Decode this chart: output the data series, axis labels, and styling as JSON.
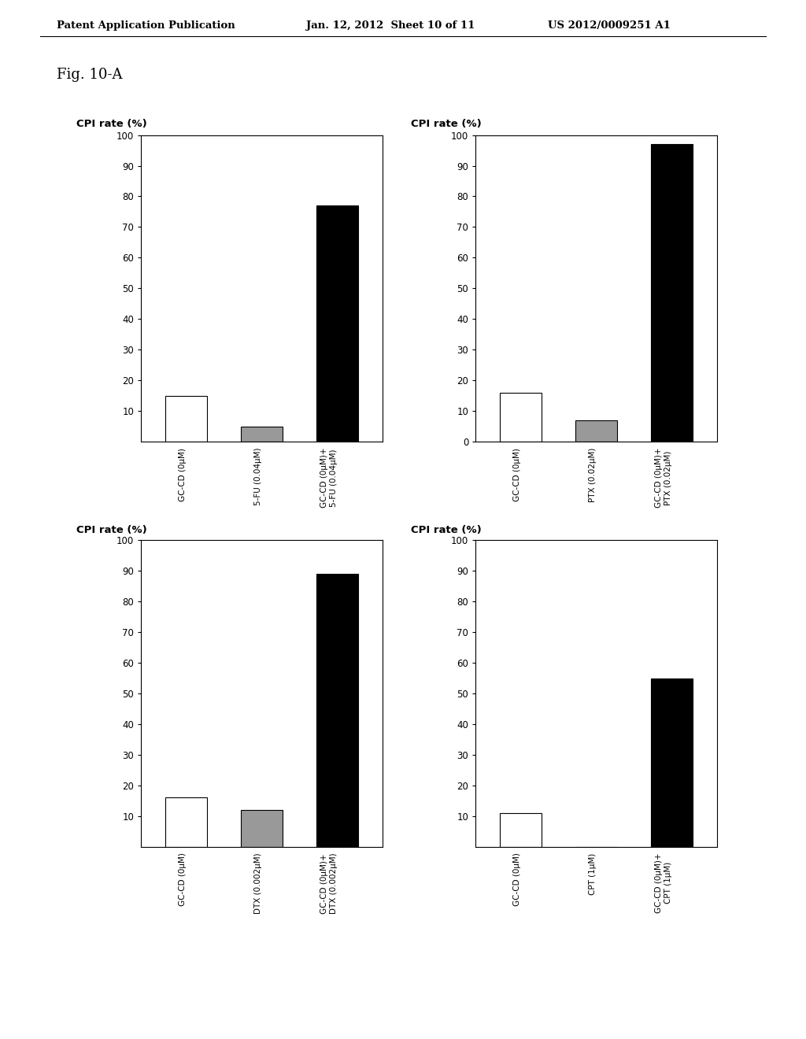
{
  "page_title_left": "Patent Application Publication",
  "page_title_mid": "Jan. 12, 2012  Sheet 10 of 11",
  "page_title_right": "US 2012/0009251 A1",
  "fig_label": "Fig. 10-A",
  "charts": [
    {
      "ylabel": "CPI rate (%)",
      "ylim": [
        0,
        100
      ],
      "yticks": [
        0,
        10,
        20,
        30,
        40,
        50,
        60,
        70,
        80,
        90,
        100
      ],
      "show_zero": false,
      "bars": [
        {
          "label": "GC-CD (0μM)",
          "value": 15,
          "color": "white",
          "edgecolor": "black"
        },
        {
          "label": "5-FU (0.04μM)",
          "value": 5,
          "color": "#999999",
          "edgecolor": "black"
        },
        {
          "label": "GC-CD (0μM)+\n5-FU (0.04μM)",
          "value": 77,
          "color": "black",
          "edgecolor": "black"
        }
      ]
    },
    {
      "ylabel": "CPI rate (%)",
      "ylim": [
        0,
        100
      ],
      "yticks": [
        0,
        10,
        20,
        30,
        40,
        50,
        60,
        70,
        80,
        90,
        100
      ],
      "show_zero": true,
      "bars": [
        {
          "label": "GC-CD (0μM)",
          "value": 16,
          "color": "white",
          "edgecolor": "black"
        },
        {
          "label": "PTX (0.02μM)",
          "value": 7,
          "color": "#999999",
          "edgecolor": "black"
        },
        {
          "label": "GC-CD (0μM)+\nPTX (0.02μM)",
          "value": 97,
          "color": "black",
          "edgecolor": "black"
        }
      ]
    },
    {
      "ylabel": "CPI rate (%)",
      "ylim": [
        0,
        100
      ],
      "yticks": [
        0,
        10,
        20,
        30,
        40,
        50,
        60,
        70,
        80,
        90,
        100
      ],
      "show_zero": false,
      "bars": [
        {
          "label": "GC-CD (0μM)",
          "value": 16,
          "color": "white",
          "edgecolor": "black"
        },
        {
          "label": "DTX (0.002μM)",
          "value": 12,
          "color": "#999999",
          "edgecolor": "black"
        },
        {
          "label": "GC-CD (0μM)+\nDTX (0.002μM)",
          "value": 89,
          "color": "black",
          "edgecolor": "black"
        }
      ]
    },
    {
      "ylabel": "CPI rate (%)",
      "ylim": [
        0,
        100
      ],
      "yticks": [
        0,
        10,
        20,
        30,
        40,
        50,
        60,
        70,
        80,
        90,
        100
      ],
      "show_zero": false,
      "bars": [
        {
          "label": "GC-CD (0μM)",
          "value": 11,
          "color": "white",
          "edgecolor": "black"
        },
        {
          "label": "CPT (1μM)",
          "value": 0,
          "color": "white",
          "edgecolor": "black"
        },
        {
          "label": "GC-CD (0μM)+\nCPT (1μM)",
          "value": 55,
          "color": "black",
          "edgecolor": "black"
        }
      ]
    }
  ],
  "background_color": "white",
  "bar_width": 0.55
}
